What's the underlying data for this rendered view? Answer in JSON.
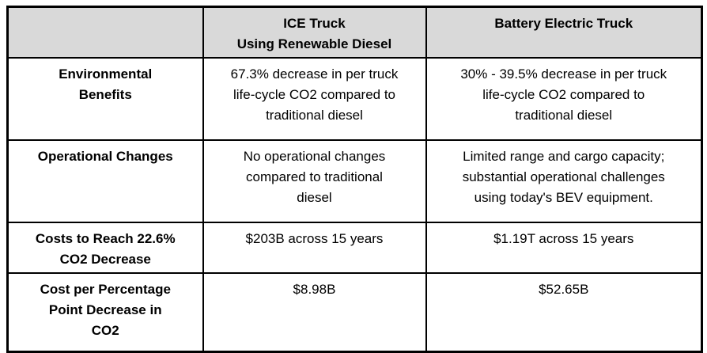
{
  "page": {
    "background_color": "#ffffff",
    "border_color": "#000000",
    "text_color": "#000000"
  },
  "table": {
    "header": {
      "background_color": "#d9d9d9",
      "corner": "",
      "ice_label": "ICE Truck\nUsing Renewable Diesel",
      "bev_label": "Battery Electric Truck"
    },
    "rows": [
      {
        "label": "Environmental\nBenefits",
        "ice": "67.3% decrease in per truck\nlife-cycle CO2 compared to\ntraditional diesel",
        "bev": "30% - 39.5% decrease in per truck\nlife-cycle CO2 compared to\ntraditional diesel"
      },
      {
        "label": "Operational Changes",
        "ice": "No operational changes\ncompared to traditional\ndiesel",
        "bev": "Limited range and cargo capacity;\nsubstantial operational challenges\nusing today's BEV equipment."
      },
      {
        "label": "Costs to Reach 22.6%\nCO2 Decrease",
        "ice": "$203B across 15 years",
        "bev": "$1.19T across 15 years"
      },
      {
        "label": "Cost per Percentage\nPoint Decrease in\nCO2",
        "ice": "$8.98B",
        "bev": "$52.65B"
      }
    ]
  }
}
